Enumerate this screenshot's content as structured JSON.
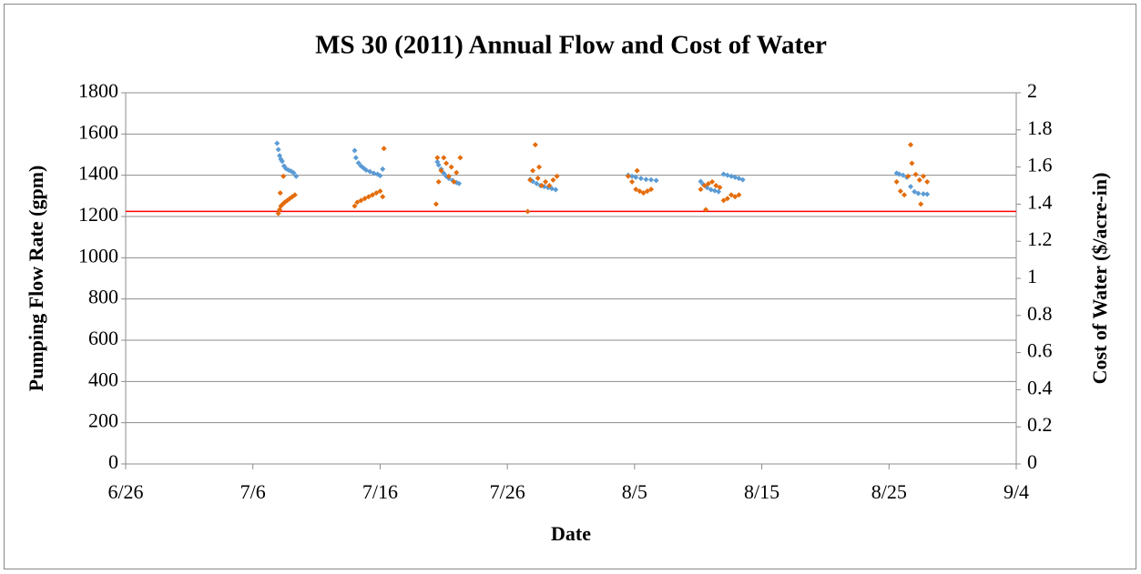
{
  "chart_data": {
    "type": "scatter",
    "title": "MS 30 (2011) Annual Flow and Cost of Water",
    "x_label": "Date",
    "y_label": "Pumping Flow Rate (gpm)",
    "y2_label": "Cost of Water ($/acre-in)",
    "xlim": [
      0,
      70
    ],
    "xticks": [
      {
        "value": 0,
        "label": "6/26"
      },
      {
        "value": 10,
        "label": "7/6"
      },
      {
        "value": 20,
        "label": "7/16"
      },
      {
        "value": 30,
        "label": "7/26"
      },
      {
        "value": 40,
        "label": "8/5"
      },
      {
        "value": 50,
        "label": "8/15"
      },
      {
        "value": 60,
        "label": "8/25"
      },
      {
        "value": 70,
        "label": "9/4"
      }
    ],
    "ylim": [
      0,
      1800
    ],
    "yticks": [
      0,
      200,
      400,
      600,
      800,
      1000,
      1200,
      1400,
      1600,
      1800
    ],
    "y2lim": [
      0,
      2
    ],
    "y2ticks": [
      0,
      0.2,
      0.4,
      0.6,
      0.8,
      1,
      1.2,
      1.4,
      1.6,
      1.8,
      2
    ],
    "grid": true,
    "reference_line": {
      "value": 1225,
      "color": "#ff0000"
    },
    "series": [
      {
        "color": "#5b9bd5",
        "x": [
          11.9,
          12.0,
          12.1,
          12.2,
          12.3,
          12.45,
          12.6,
          12.8,
          13.0,
          13.2,
          13.4,
          18.0,
          18.1,
          18.3,
          18.5,
          18.7,
          18.9,
          19.2,
          19.5,
          19.8,
          20.0,
          20.2,
          24.5,
          24.6,
          24.8,
          25.0,
          25.2,
          25.4,
          25.7,
          26.0,
          26.2,
          31.8,
          32.0,
          32.3,
          32.6,
          32.9,
          33.2,
          33.5,
          33.8,
          39.5,
          39.8,
          40.1,
          40.5,
          40.9,
          41.3,
          41.7,
          45.2,
          45.4,
          45.7,
          46.0,
          46.3,
          46.6,
          47.0,
          47.3,
          47.6,
          47.9,
          48.2,
          48.5,
          60.6,
          60.8,
          61.1,
          61.4,
          61.7,
          62.0,
          62.3,
          62.7,
          63.0
        ],
        "values": [
          1555,
          1525,
          1495,
          1478,
          1468,
          1445,
          1432,
          1425,
          1420,
          1412,
          1395,
          1520,
          1485,
          1460,
          1445,
          1435,
          1425,
          1418,
          1410,
          1405,
          1398,
          1430,
          1465,
          1450,
          1430,
          1410,
          1395,
          1385,
          1375,
          1365,
          1360,
          1380,
          1370,
          1360,
          1350,
          1345,
          1340,
          1335,
          1330,
          1400,
          1395,
          1390,
          1385,
          1380,
          1378,
          1375,
          1370,
          1355,
          1340,
          1330,
          1325,
          1320,
          1405,
          1400,
          1395,
          1390,
          1385,
          1378,
          1410,
          1405,
          1400,
          1390,
          1345,
          1320,
          1312,
          1310,
          1308
        ]
      },
      {
        "color": "#e46c0a",
        "axis": "y2",
        "x": [
          12.0,
          12.1,
          12.2,
          12.35,
          12.5,
          12.7,
          12.9,
          13.1,
          13.3,
          12.15,
          12.4,
          18.0,
          18.2,
          18.5,
          18.8,
          19.1,
          19.4,
          19.7,
          20.0,
          20.2,
          20.3,
          24.4,
          24.6,
          24.8,
          25.0,
          25.2,
          25.4,
          25.6,
          25.8,
          26.0,
          26.3,
          24.5,
          31.6,
          31.8,
          32.0,
          32.2,
          32.4,
          32.7,
          33.0,
          33.3,
          33.6,
          33.9,
          32.5,
          39.5,
          39.8,
          40.1,
          40.4,
          40.7,
          41.0,
          41.3,
          40.2,
          45.2,
          45.5,
          45.8,
          46.1,
          46.4,
          46.7,
          45.6,
          47.0,
          47.3,
          47.6,
          47.9,
          48.2,
          60.6,
          60.9,
          61.2,
          61.5,
          61.8,
          62.1,
          62.4,
          62.7,
          63.0,
          61.7,
          62.5
        ],
        "values": [
          1.35,
          1.37,
          1.39,
          1.4,
          1.41,
          1.42,
          1.43,
          1.44,
          1.45,
          1.46,
          1.55,
          1.39,
          1.41,
          1.42,
          1.43,
          1.44,
          1.45,
          1.46,
          1.47,
          1.44,
          1.7,
          1.4,
          1.52,
          1.58,
          1.65,
          1.62,
          1.55,
          1.6,
          1.52,
          1.57,
          1.65,
          1.65,
          1.36,
          1.53,
          1.58,
          1.72,
          1.54,
          1.5,
          1.52,
          1.5,
          1.53,
          1.55,
          1.6,
          1.55,
          1.52,
          1.48,
          1.47,
          1.46,
          1.47,
          1.48,
          1.58,
          1.48,
          1.5,
          1.51,
          1.52,
          1.5,
          1.49,
          1.37,
          1.42,
          1.43,
          1.45,
          1.44,
          1.45,
          1.52,
          1.47,
          1.45,
          1.55,
          1.62,
          1.56,
          1.53,
          1.55,
          1.52,
          1.72,
          1.4
        ]
      }
    ]
  }
}
